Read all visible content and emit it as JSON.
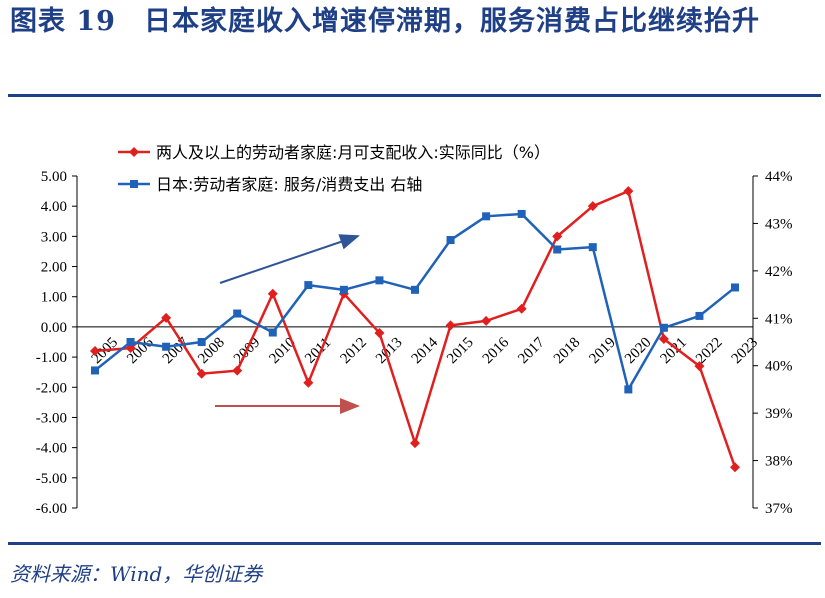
{
  "header": {
    "title": "图表 19　日本家庭收入增速停滞期，服务消费占比继续抬升"
  },
  "footer": {
    "source": "资料来源：Wind，华创证券"
  },
  "colors": {
    "title": "#1f3f86",
    "series_income": "#e0201f",
    "series_service": "#1f62b8",
    "arrow_blue": "#2f5597",
    "arrow_red": "#c0504d"
  },
  "chart_data": {
    "type": "line",
    "x": [
      "2005",
      "2006",
      "2007",
      "2008",
      "2009",
      "2010",
      "2011",
      "2012",
      "2013",
      "2014",
      "2015",
      "2016",
      "2017",
      "2018",
      "2019",
      "2020",
      "2021",
      "2022",
      "2023"
    ],
    "y_left": {
      "range": [
        -6.0,
        5.0
      ],
      "ticks": [
        "5.00",
        "4.00",
        "3.00",
        "2.00",
        "1.00",
        "0.00",
        "-1.00",
        "-2.00",
        "-3.00",
        "-4.00",
        "-5.00",
        "-6.00"
      ],
      "tick_values": [
        5,
        4,
        3,
        2,
        1,
        0,
        -1,
        -2,
        -3,
        -4,
        -5,
        -6
      ]
    },
    "y_right": {
      "range": [
        37,
        44
      ],
      "ticks": [
        "44%",
        "43%",
        "42%",
        "41%",
        "40%",
        "39%",
        "38%",
        "37%"
      ],
      "tick_values": [
        44,
        43,
        42,
        41,
        40,
        39,
        38,
        37
      ]
    },
    "series": [
      {
        "name": "两人及以上的劳动者家庭:月可支配收入:实际同比（%）",
        "axis": "left",
        "marker": "diamond",
        "values": [
          -0.8,
          -0.7,
          0.3,
          -1.55,
          -1.45,
          1.1,
          -1.85,
          1.1,
          -0.2,
          -3.85,
          0.05,
          0.2,
          0.6,
          3.0,
          4.0,
          4.5,
          -0.4,
          -1.3,
          -4.65
        ]
      },
      {
        "name": "日本:劳动者家庭: 服务/消费支出 右轴",
        "axis": "right",
        "marker": "square",
        "values": [
          39.9,
          40.5,
          40.4,
          40.5,
          41.1,
          40.7,
          41.7,
          41.6,
          41.8,
          41.6,
          42.65,
          43.15,
          43.2,
          42.45,
          42.5,
          39.5,
          40.8,
          41.05,
          41.65
        ]
      }
    ],
    "grid": false,
    "legend": "top"
  }
}
